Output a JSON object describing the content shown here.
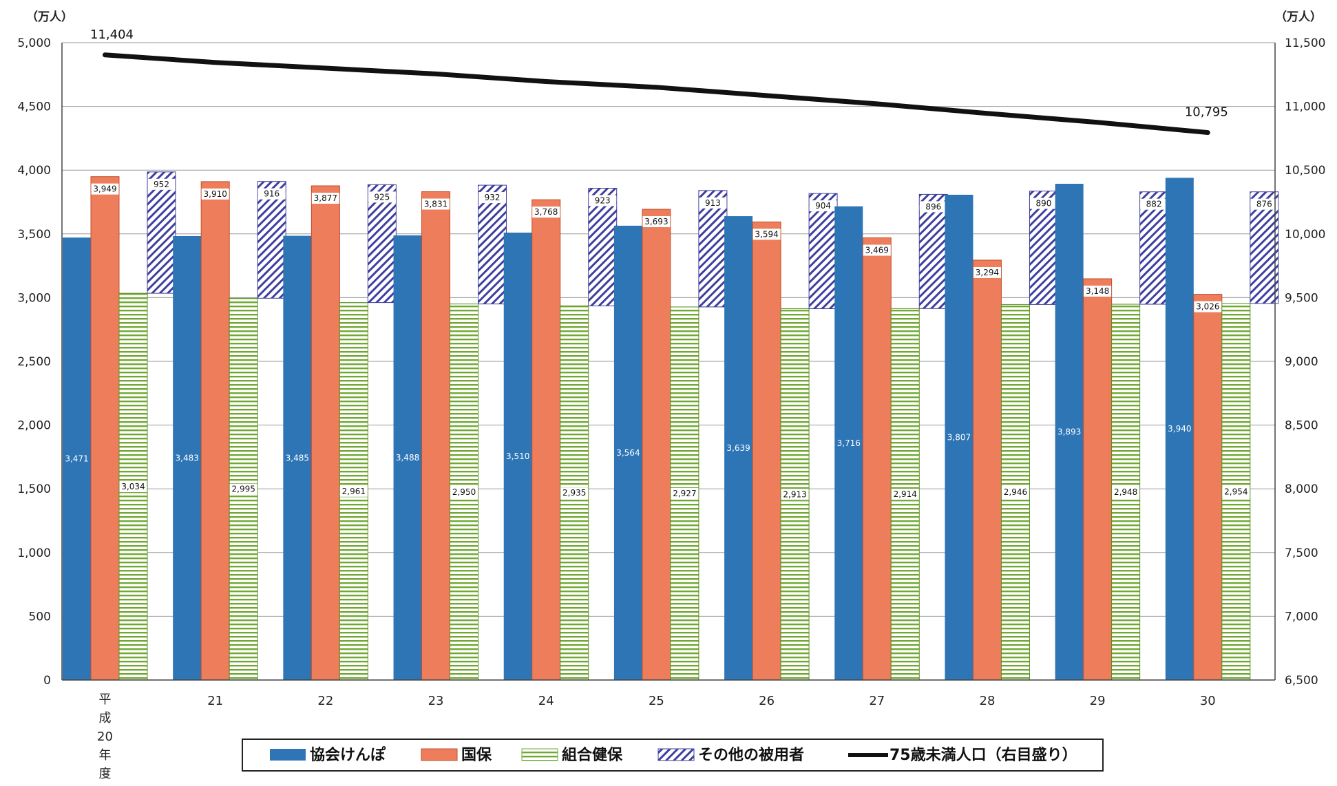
{
  "chart_data": {
    "type": "bar",
    "left_unit": "（万人）",
    "right_unit": "（万人）",
    "categories": [
      "平成20年度",
      "21",
      "22",
      "23",
      "24",
      "25",
      "26",
      "27",
      "28",
      "29",
      "30"
    ],
    "category_first_chars": [
      "平",
      "成",
      "20",
      "年",
      "度"
    ],
    "ylim": [
      0,
      5000
    ],
    "yticks": [
      "0",
      "500",
      "1,000",
      "1,500",
      "2,000",
      "2,500",
      "3,000",
      "3,500",
      "4,000",
      "4,500",
      "5,000"
    ],
    "y2lim": [
      6500,
      11500
    ],
    "y2ticks": [
      "6,500",
      "7,000",
      "7,500",
      "8,000",
      "8,500",
      "9,000",
      "9,500",
      "10,000",
      "10,500",
      "11,000",
      "11,500"
    ],
    "series": [
      {
        "name": "協会けんぽ",
        "color": "#2E75B6",
        "pattern": "solid",
        "values": [
          3471,
          3483,
          3485,
          3488,
          3510,
          3564,
          3639,
          3716,
          3807,
          3893,
          3940
        ],
        "labels": [
          "3,471",
          "3,483",
          "3,485",
          "3,488",
          "3,510",
          "3,564",
          "3,639",
          "3,716",
          "3,807",
          "3,893",
          "3,940"
        ]
      },
      {
        "name": "国保",
        "color": "#ED7D5B",
        "pattern": "solid",
        "values": [
          3949,
          3910,
          3877,
          3831,
          3768,
          3693,
          3594,
          3469,
          3294,
          3148,
          3026
        ],
        "labels": [
          "3,949",
          "3,910",
          "3,877",
          "3,831",
          "3,768",
          "3,693",
          "3,594",
          "3,469",
          "3,294",
          "3,148",
          "3,026"
        ]
      },
      {
        "name": "組合健保",
        "color": "#70A832",
        "pattern": "hlines",
        "values": [
          3034,
          2995,
          2961,
          2950,
          2935,
          2927,
          2913,
          2914,
          2946,
          2948,
          2954
        ],
        "labels": [
          "3,034",
          "2,995",
          "2,961",
          "2,950",
          "2,935",
          "2,927",
          "2,913",
          "2,914",
          "2,946",
          "2,948",
          "2,954"
        ]
      },
      {
        "name": "その他の被用者",
        "color": "#3F3F9F",
        "pattern": "diag",
        "values": [
          952,
          916,
          925,
          932,
          923,
          913,
          904,
          896,
          890,
          882,
          876
        ],
        "labels": [
          "952",
          "916",
          "925",
          "932",
          "923",
          "913",
          "904",
          "896",
          "890",
          "882",
          "876"
        ]
      }
    ],
    "line_series": {
      "name": "75歳未満人口（右目盛り）",
      "color": "#111111",
      "values": [
        11404,
        11345,
        11300,
        11255,
        11195,
        11150,
        11085,
        11020,
        10945,
        10875,
        10795
      ],
      "start_label": "11,404",
      "end_label": "10,795"
    },
    "grid": true,
    "legend_position": "bottom"
  }
}
